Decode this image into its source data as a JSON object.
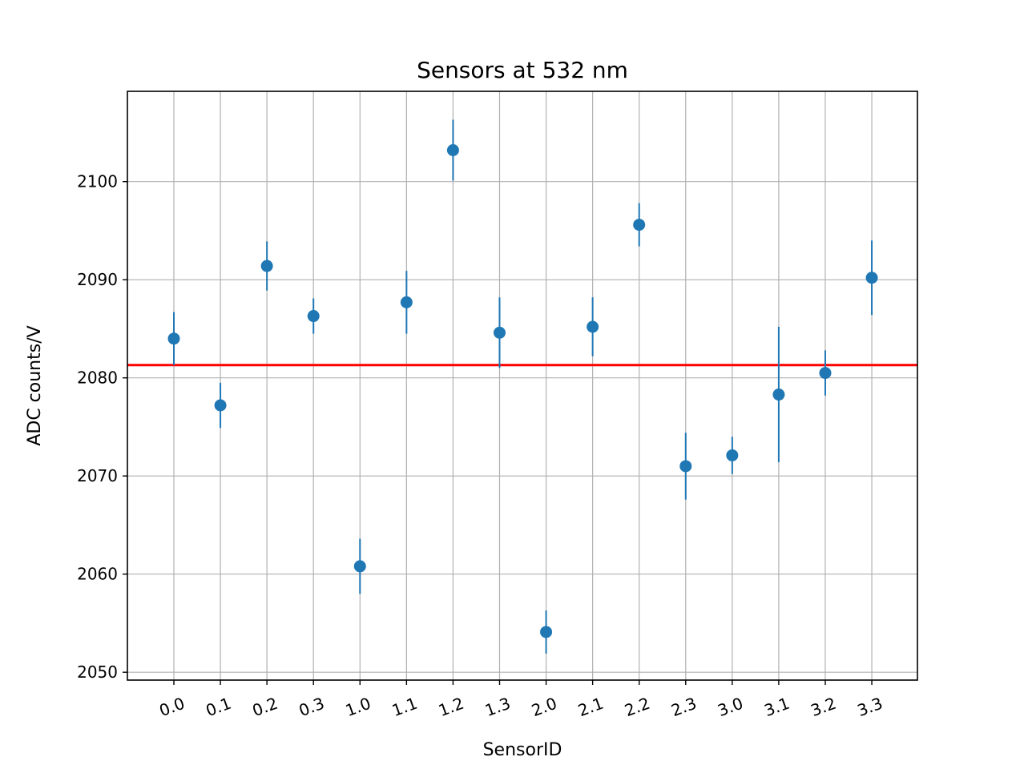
{
  "chart_data": {
    "type": "scatter",
    "title": "Sensors at 532 nm",
    "xlabel": "SensorID",
    "ylabel": "ADC counts/V",
    "categories": [
      "0.0",
      "0.1",
      "0.2",
      "0.3",
      "1.0",
      "1.1",
      "1.2",
      "1.3",
      "2.0",
      "2.1",
      "2.2",
      "2.3",
      "3.0",
      "3.1",
      "3.2",
      "3.3"
    ],
    "values": [
      2084.0,
      2077.2,
      2091.4,
      2086.3,
      2060.8,
      2087.7,
      2103.2,
      2084.6,
      2054.1,
      2085.2,
      2095.6,
      2071.0,
      2072.1,
      2078.3,
      2080.5,
      2090.2
    ],
    "errors": [
      2.7,
      2.3,
      2.5,
      1.8,
      2.8,
      3.2,
      3.1,
      3.6,
      2.2,
      3.0,
      2.2,
      3.4,
      1.9,
      6.9,
      2.3,
      3.8
    ],
    "reference_line": 2081.3,
    "ylim": [
      2049.2,
      2109.2
    ],
    "yticks": [
      2050,
      2060,
      2070,
      2080,
      2090,
      2100
    ],
    "grid": true,
    "colors": {
      "points": "#1f77b4",
      "reference_line": "#ff0000",
      "grid": "#b0b0b0"
    }
  }
}
